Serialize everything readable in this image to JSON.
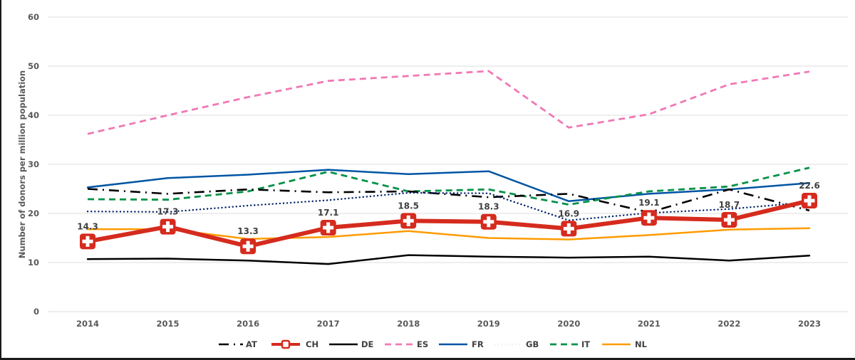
{
  "chart_data": {
    "type": "line",
    "title": "",
    "xlabel": "",
    "ylabel": "Number of donors per million population",
    "x": [
      "2014",
      "2015",
      "2016",
      "2017",
      "2018",
      "2019",
      "2020",
      "2021",
      "2022",
      "2023"
    ],
    "ylim": [
      0,
      60
    ],
    "yticks": [
      0,
      10,
      20,
      30,
      40,
      50,
      60
    ],
    "grid": true,
    "legend_position": "bottom",
    "series": [
      {
        "name": "AT",
        "color": "#000000",
        "style": "dash-dot",
        "values": [
          25.0,
          24.0,
          24.9,
          24.3,
          24.5,
          23.3,
          24.0,
          20.2,
          24.9,
          20.6
        ]
      },
      {
        "name": "CH",
        "color": "#d52b1e",
        "style": "solid-thick-marker",
        "values": [
          14.3,
          17.3,
          13.3,
          17.1,
          18.5,
          18.3,
          16.9,
          19.1,
          18.7,
          22.6
        ],
        "data_labels": [
          "14.3",
          "17.3",
          "13.3",
          "17.1",
          "18.5",
          "18.3",
          "16.9",
          "19.1",
          "18.7",
          "22.6"
        ]
      },
      {
        "name": "DE",
        "color": "#000000",
        "style": "solid",
        "values": [
          10.7,
          10.8,
          10.4,
          9.7,
          11.5,
          11.2,
          11.0,
          11.2,
          10.4,
          11.4
        ]
      },
      {
        "name": "ES",
        "color": "#f178b6",
        "style": "dashed",
        "values": [
          36.2,
          40.0,
          43.7,
          47.0,
          48.0,
          49.0,
          37.5,
          40.2,
          46.3,
          48.9
        ]
      },
      {
        "name": "FR",
        "color": "#0055a4",
        "style": "solid",
        "values": [
          25.3,
          27.2,
          27.9,
          28.9,
          28.0,
          28.6,
          22.5,
          24.0,
          24.9,
          26.2
        ]
      },
      {
        "name": "GB",
        "color": "#012169",
        "style": "dotted",
        "values": [
          20.4,
          20.3,
          21.6,
          22.7,
          24.2,
          24.1,
          18.6,
          20.1,
          20.9,
          22.3
        ]
      },
      {
        "name": "IT",
        "color": "#009246",
        "style": "dashed",
        "values": [
          22.9,
          22.8,
          24.5,
          28.5,
          24.5,
          24.9,
          21.8,
          24.5,
          25.5,
          29.3
        ]
      },
      {
        "name": "NL",
        "color": "#ff9b00",
        "style": "solid",
        "values": [
          16.8,
          16.8,
          14.8,
          15.2,
          16.4,
          15.0,
          14.7,
          15.6,
          16.7,
          17.0
        ]
      }
    ]
  }
}
